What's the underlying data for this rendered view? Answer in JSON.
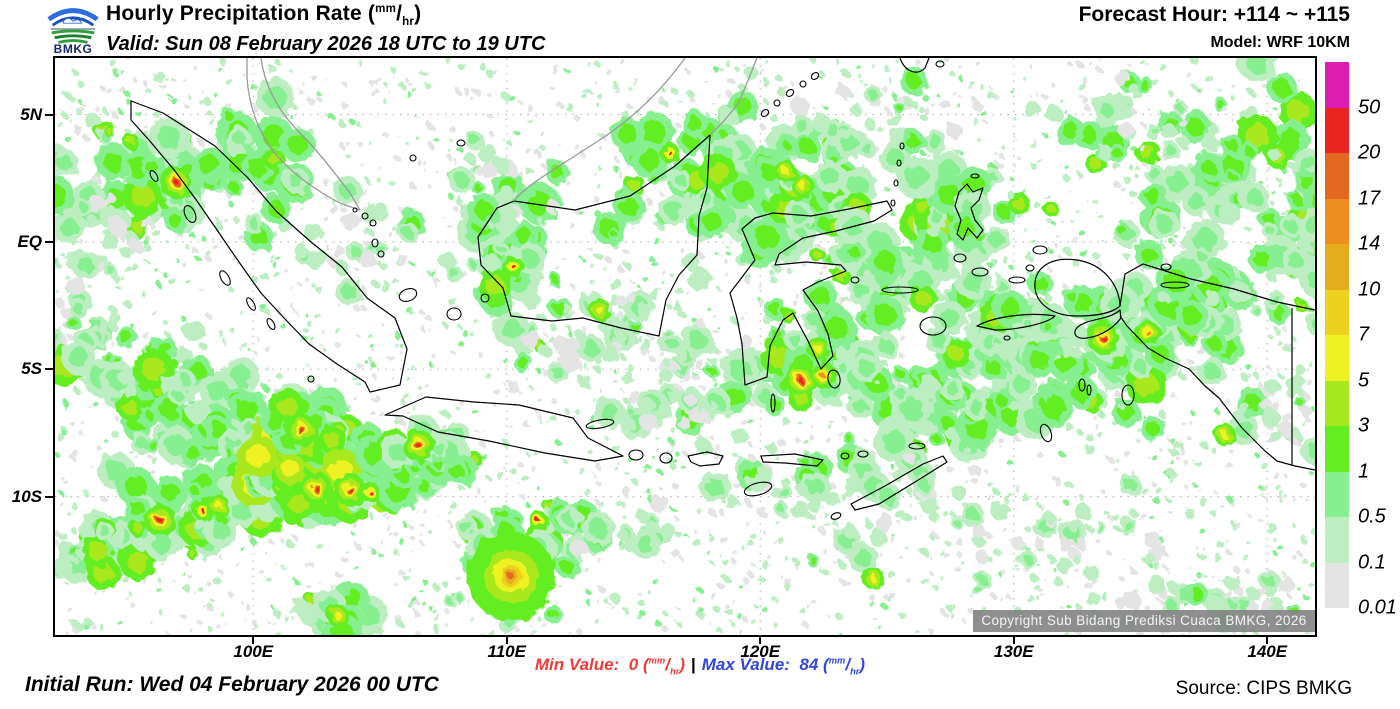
{
  "header": {
    "title_prefix": "Hourly Precipitation Rate (",
    "title_suffix": ")",
    "valid_line": "Valid: Sun 08 February 2026 18 UTC to 19 UTC",
    "forecast_hour": "Forecast Hour: +114 ~ +115",
    "model": "Model: WRF 10KM",
    "logo_text": "BMKG"
  },
  "units": {
    "numerator": "mm",
    "slash": "/",
    "denominator": "hr",
    "open": "(",
    "close": ")"
  },
  "map": {
    "copyright": "Copyright Sub Bidang Prediksi Cuaca BMKG, 2026"
  },
  "legend": {
    "values_top_to_bottom": [
      "50",
      "20",
      "17",
      "14",
      "10",
      "7",
      "5",
      "3",
      "1",
      "0.5",
      "0.1",
      "0.01"
    ],
    "colors_top_to_bottom": [
      "#dd1cb1",
      "#ec2420",
      "#e56820",
      "#ec8f1e",
      "#e6ac20",
      "#ecd11e",
      "#eff222",
      "#a8e81e",
      "#64ee22",
      "#86ef90",
      "#bceec2",
      "#e4e4e4"
    ]
  },
  "axes": {
    "lon_ticks": [
      {
        "label": "100E",
        "deg": 100
      },
      {
        "label": "110E",
        "deg": 110
      },
      {
        "label": "120E",
        "deg": 120
      },
      {
        "label": "130E",
        "deg": 130
      },
      {
        "label": "140E",
        "deg": 140
      }
    ],
    "lat_ticks": [
      {
        "label": "5N",
        "deg": 5
      },
      {
        "label": "EQ",
        "deg": 0
      },
      {
        "label": "5S",
        "deg": -5
      },
      {
        "label": "10S",
        "deg": -10
      }
    ]
  },
  "footer": {
    "min_label": "Min Value:",
    "min_value": "0",
    "max_label": "Max Value:",
    "max_value": "84",
    "separator": "|",
    "initial_run": "Initial Run: Wed 04 February 2026 00 UTC",
    "source": "Source: CIPS BMKG"
  },
  "chart_data": {
    "type": "heatmap",
    "title": "Hourly Precipitation Rate (mm/hr)",
    "valid": "Sun 08 February 2026 18 UTC to 19 UTC",
    "forecast_hour_range": [
      114,
      115
    ],
    "model": "WRF 10KM",
    "initial_run": "Wed 04 February 2026 00 UTC",
    "min_value": 0,
    "max_value": 84,
    "unit": "mm/hr",
    "extent": {
      "lon_min": 92.2,
      "lon_max": 141.9,
      "lat_min": -15.4,
      "lat_max": 7.2
    },
    "scale_levels_ascending": [
      0.01,
      0.1,
      0.5,
      1,
      3,
      5,
      7,
      10,
      14,
      17,
      20,
      50
    ],
    "scale_colors_ascending": [
      "#e4e4e4",
      "#bceec2",
      "#86ef90",
      "#64ee22",
      "#a8e81e",
      "#eff222",
      "#ecd11e",
      "#e6ac20",
      "#ec8f1e",
      "#e56820",
      "#ec2420",
      "#dd1cb1"
    ],
    "grid": true,
    "legend_position": "right",
    "clusters": [
      [
        120,
        115,
        140,
        70,
        80,
        2
      ],
      [
        40,
        180,
        60,
        50,
        30,
        1
      ],
      [
        30,
        270,
        70,
        45,
        35,
        1
      ],
      [
        90,
        320,
        85,
        45,
        45,
        2
      ],
      [
        165,
        370,
        85,
        45,
        45,
        2
      ],
      [
        240,
        405,
        75,
        35,
        40,
        2
      ],
      [
        45,
        490,
        60,
        28,
        35,
        2
      ],
      [
        110,
        462,
        70,
        28,
        40,
        2
      ],
      [
        180,
        445,
        80,
        26,
        40,
        2
      ],
      [
        262,
        431,
        80,
        24,
        45,
        3
      ],
      [
        330,
        425,
        65,
        24,
        35,
        2
      ],
      [
        246,
        372,
        55,
        38,
        45,
        3
      ],
      [
        370,
        400,
        55,
        25,
        30,
        2
      ],
      [
        455,
        205,
        40,
        75,
        45,
        2
      ],
      [
        450,
        130,
        55,
        55,
        30,
        1
      ],
      [
        660,
        115,
        115,
        80,
        75,
        2
      ],
      [
        748,
        135,
        75,
        55,
        45,
        2
      ],
      [
        560,
        255,
        70,
        45,
        30,
        1
      ],
      [
        640,
        300,
        75,
        40,
        30,
        1
      ],
      [
        745,
        300,
        70,
        60,
        45,
        2
      ],
      [
        830,
        220,
        85,
        65,
        55,
        2
      ],
      [
        880,
        345,
        95,
        80,
        60,
        2
      ],
      [
        960,
        290,
        80,
        60,
        45,
        2
      ],
      [
        850,
        445,
        110,
        55,
        45,
        1
      ],
      [
        1030,
        285,
        110,
        80,
        65,
        2
      ],
      [
        1140,
        250,
        90,
        60,
        45,
        2
      ],
      [
        1170,
        110,
        130,
        85,
        70,
        2
      ],
      [
        1060,
        60,
        90,
        45,
        35,
        1
      ],
      [
        1245,
        170,
        55,
        80,
        40,
        2
      ],
      [
        1230,
        360,
        70,
        50,
        30,
        1
      ],
      [
        1150,
        545,
        110,
        35,
        40,
        1
      ],
      [
        990,
        480,
        120,
        50,
        35,
        1
      ],
      [
        700,
        420,
        90,
        40,
        30,
        1
      ],
      [
        610,
        350,
        80,
        30,
        22,
        1
      ],
      [
        300,
        190,
        80,
        50,
        28,
        1
      ],
      [
        820,
        60,
        120,
        45,
        30,
        1
      ],
      [
        480,
        470,
        80,
        30,
        30,
        2
      ],
      [
        560,
        470,
        70,
        25,
        25,
        1
      ],
      [
        456,
        518,
        55,
        40,
        35,
        2
      ],
      [
        283,
        555,
        50,
        25,
        20,
        2
      ],
      [
        520,
        300,
        60,
        35,
        20,
        1
      ],
      [
        905,
        150,
        60,
        70,
        35,
        2
      ]
    ],
    "hotspots": [
      [
        121,
        124,
        "red"
      ],
      [
        458,
        208,
        "red_s"
      ],
      [
        545,
        252,
        "yellow"
      ],
      [
        615,
        95,
        "red_s"
      ],
      [
        246,
        372,
        "red"
      ],
      [
        261,
        430,
        "red"
      ],
      [
        295,
        432,
        "red"
      ],
      [
        315,
        434,
        "red_s"
      ],
      [
        105,
        462,
        "red"
      ],
      [
        148,
        453,
        "red_s"
      ],
      [
        163,
        447,
        "yellow"
      ],
      [
        363,
        387,
        "red"
      ],
      [
        483,
        463,
        "red_s"
      ],
      [
        746,
        322,
        "red"
      ],
      [
        768,
        318,
        "orange"
      ],
      [
        763,
        290,
        "yellow"
      ],
      [
        1048,
        280,
        "red"
      ],
      [
        1093,
        275,
        "orange"
      ],
      [
        1170,
        377,
        "yellow"
      ],
      [
        818,
        520,
        "yellow"
      ],
      [
        748,
        128,
        "yellow"
      ],
      [
        730,
        113,
        "yellow"
      ],
      [
        283,
        558,
        "yellow"
      ],
      [
        456,
        518,
        "cyclone"
      ]
    ]
  }
}
